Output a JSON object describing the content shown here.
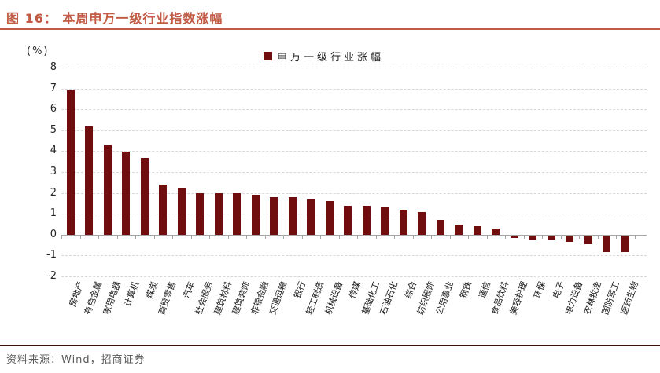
{
  "header": {
    "title": "图 16： 本周申万一级行业指数涨幅"
  },
  "colors": {
    "accent_rust": "#C25B44",
    "bar": "#6F0D0F",
    "separator": "#3B100C",
    "grid": "#d9d9d9",
    "axis": "#a6a6a6"
  },
  "chart_data": {
    "type": "bar",
    "title": "本周申万一级行业指数涨幅",
    "unit_label": "(%)",
    "legend": [
      "申万一级行业涨幅"
    ],
    "legend_position": "top-center",
    "grid": "horizontal-dashed",
    "ylim": [
      -2,
      8
    ],
    "yticks": [
      8,
      7,
      6,
      5,
      4,
      3,
      2,
      1,
      0,
      -1,
      -2
    ],
    "categories": [
      "房地产",
      "有色金属",
      "家用电器",
      "计算机",
      "煤炭",
      "商贸零售",
      "汽车",
      "社会服务",
      "建筑材料",
      "建筑装饰",
      "非银金融",
      "交通运输",
      "银行",
      "轻工制造",
      "机械设备",
      "传媒",
      "基础化工",
      "石油石化",
      "综合",
      "纺织服饰",
      "公用事业",
      "钢铁",
      "通信",
      "食品饮料",
      "美容护理",
      "环保",
      "电子",
      "电力设备",
      "农林牧渔",
      "国防军工",
      "医药生物"
    ],
    "values": [
      6.9,
      5.2,
      4.3,
      4.0,
      3.7,
      2.4,
      2.2,
      2.0,
      2.0,
      2.0,
      1.9,
      1.8,
      1.8,
      1.7,
      1.6,
      1.4,
      1.4,
      1.3,
      1.2,
      1.1,
      0.7,
      0.5,
      0.4,
      0.3,
      -0.1,
      -0.2,
      -0.2,
      -0.3,
      -0.4,
      -0.8,
      -0.8
    ]
  },
  "footer": {
    "source": "资料来源：Wind，招商证券"
  }
}
